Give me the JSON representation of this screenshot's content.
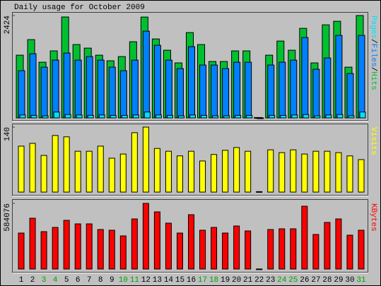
{
  "chart_data": [
    {
      "type": "bar",
      "title": "Daily usage for October 2009",
      "legend_separator": "/",
      "ylim": [
        0,
        2424
      ],
      "yticks": [
        2424
      ],
      "series": [
        {
          "name": "Hits",
          "color": "#00c030",
          "values": [
            1486,
            1854,
            1319,
            1587,
            2390,
            1737,
            1653,
            1486,
            1353,
            1453,
            1804,
            2388,
            1870,
            1603,
            1303,
            2021,
            1737,
            1336,
            1336,
            1587,
            1587,
            10,
            1486,
            1820,
            1603,
            2121,
            1303,
            2204,
            2288,
            1202,
            2424
          ]
        },
        {
          "name": "Files",
          "color": "#0080ff",
          "values": [
            1119,
            1520,
            1202,
            1369,
            1536,
            1369,
            1453,
            1369,
            1202,
            1119,
            1369,
            2054,
            1720,
            1369,
            1169,
            1687,
            1253,
            1253,
            1169,
            1319,
            1319,
            5,
            1253,
            1319,
            1369,
            1904,
            1152,
            1420,
            1954,
            1052,
            1954
          ]
        },
        {
          "name": "Pages",
          "color": "#00e0ff",
          "values": [
            70,
            60,
            50,
            140,
            80,
            70,
            60,
            70,
            60,
            60,
            70,
            140,
            70,
            60,
            50,
            70,
            60,
            50,
            50,
            60,
            60,
            0,
            60,
            60,
            70,
            80,
            50,
            70,
            80,
            50,
            140
          ]
        }
      ]
    },
    {
      "type": "bar",
      "ylim": [
        0,
        140
      ],
      "yticks": [
        140
      ],
      "series": [
        {
          "name": "Visits",
          "color": "#ffff00",
          "values": [
            99,
            105,
            79,
            122,
            119,
            88,
            88,
            99,
            73,
            82,
            128,
            140,
            94,
            88,
            78,
            88,
            67,
            81,
            90,
            96,
            88,
            1,
            91,
            85,
            91,
            82,
            88,
            88,
            85,
            78,
            70
          ]
        }
      ]
    },
    {
      "type": "bar",
      "ylim": [
        0,
        584076
      ],
      "yticks": [
        584076
      ],
      "categories": [
        "1",
        "2",
        "3",
        "4",
        "5",
        "6",
        "7",
        "8",
        "9",
        "10",
        "11",
        "12",
        "13",
        "14",
        "15",
        "16",
        "17",
        "18",
        "19",
        "20",
        "21",
        "22",
        "23",
        "24",
        "25",
        "26",
        "27",
        "28",
        "29",
        "30",
        "31"
      ],
      "category_colors": [
        "#000000",
        "#000000",
        "#00a000",
        "#00a000",
        "#000000",
        "#000000",
        "#000000",
        "#000000",
        "#000000",
        "#00a000",
        "#00a000",
        "#000000",
        "#000000",
        "#000000",
        "#000000",
        "#000000",
        "#00a000",
        "#00a000",
        "#000000",
        "#000000",
        "#000000",
        "#000000",
        "#000000",
        "#00a000",
        "#00a000",
        "#000000",
        "#000000",
        "#000000",
        "#000000",
        "#000000",
        "#00a000"
      ],
      "series": [
        {
          "name": "KBytes",
          "color": "#ff0000",
          "values": [
            320280,
            452160,
            332840,
            370520,
            433320,
            401920,
            401920,
            351680,
            345400,
            295160,
            445880,
            584076,
            508680,
            408200,
            320280,
            483560,
            345400,
            370520,
            320280,
            383080,
            339120,
            1000,
            351680,
            357960,
            357960,
            558920,
            307720,
            414480,
            445880,
            301440,
            345400
          ]
        }
      ]
    }
  ]
}
